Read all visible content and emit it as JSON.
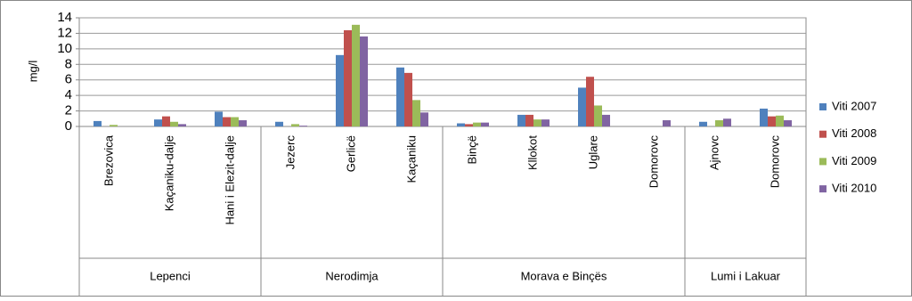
{
  "chart_data": {
    "type": "bar",
    "y_label": "mg/l",
    "groups": [
      {
        "label": "Lepenci",
        "categories": [
          "Brezovica",
          "Kaçaniku-dalje",
          "Hani i Elezit-dalje"
        ]
      },
      {
        "label": "Nerodimja",
        "categories": [
          "Jezerc",
          "Gerlicë",
          "Kaçaniku"
        ]
      },
      {
        "label": "Morava e Binçës",
        "categories": [
          "Binçë",
          "Kllokot",
          "Uglare",
          "Domorovc"
        ]
      },
      {
        "label": "Lumi i Lakuar",
        "categories": [
          "Ajnovc",
          "Domorovc"
        ]
      }
    ],
    "series": [
      {
        "name": "Viti 2007",
        "color": "#4f81bd",
        "values": [
          0.7,
          0.9,
          1.9,
          0.6,
          9.2,
          7.6,
          0.4,
          1.5,
          5.0,
          null,
          0.6,
          2.3
        ]
      },
      {
        "name": "Viti 2008",
        "color": "#c0504d",
        "values": [
          null,
          1.3,
          1.2,
          null,
          12.4,
          6.9,
          0.3,
          1.5,
          6.4,
          null,
          null,
          1.3
        ]
      },
      {
        "name": "Viti 2009",
        "color": "#9bbb59",
        "values": [
          0.2,
          0.6,
          1.2,
          0.3,
          13.1,
          3.4,
          0.5,
          0.9,
          2.7,
          null,
          0.8,
          1.4
        ]
      },
      {
        "name": "Viti 2010",
        "color": "#8064a2",
        "values": [
          null,
          0.3,
          0.8,
          0.1,
          11.6,
          1.8,
          0.5,
          0.9,
          1.5,
          0.8,
          1.0,
          0.8
        ]
      }
    ],
    "ylim": [
      0,
      14
    ],
    "yticks": [
      0,
      2,
      4,
      6,
      8,
      10,
      12,
      14
    ],
    "grid": true,
    "legend": "right"
  }
}
